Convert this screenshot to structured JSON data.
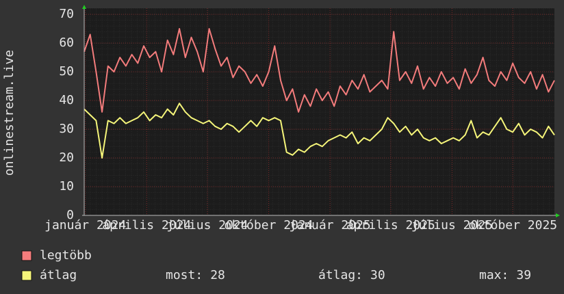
{
  "chart_data": {
    "type": "line",
    "ylabel": "onlinestream.live",
    "x": [
      0,
      1,
      2,
      3,
      4,
      5,
      6,
      7,
      8,
      9,
      10,
      11,
      12,
      13,
      14,
      15,
      16,
      17,
      18,
      19,
      20,
      21,
      22,
      23,
      24,
      25,
      26,
      27,
      28,
      29,
      30,
      31,
      32,
      33,
      34,
      35,
      36,
      37,
      38,
      39,
      40,
      41,
      42,
      43,
      44,
      45,
      46,
      47,
      48,
      49,
      50,
      51,
      52,
      53,
      54,
      55,
      56,
      57,
      58,
      59,
      60,
      61,
      62,
      63,
      64,
      65,
      66,
      67,
      68,
      69,
      70,
      71,
      72,
      73,
      74,
      75,
      76,
      77,
      78,
      79
    ],
    "xlim": [
      0,
      79
    ],
    "xticks": [
      {
        "value": 0.2,
        "label": "január 2024"
      },
      {
        "value": 10.5,
        "label": "április 2024"
      },
      {
        "value": 20.7,
        "label": "július 2024"
      },
      {
        "value": 31.0,
        "label": "október 2024"
      },
      {
        "value": 41.3,
        "label": "január 2025"
      },
      {
        "value": 51.5,
        "label": "április 2025"
      },
      {
        "value": 61.8,
        "label": "július 2025"
      },
      {
        "value": 72.0,
        "label": "október 2025"
      }
    ],
    "ylim": [
      0,
      70
    ],
    "yticks": [
      0,
      10,
      20,
      30,
      40,
      50,
      60,
      70
    ],
    "grid": true,
    "series": [
      {
        "name": "legtöbb",
        "color": "#f47c7c",
        "values": [
          57,
          63,
          50,
          36,
          52,
          50,
          55,
          52,
          56,
          53,
          59,
          55,
          57,
          50,
          61,
          56,
          65,
          55,
          62,
          57,
          50,
          65,
          58,
          52,
          55,
          48,
          52,
          50,
          46,
          49,
          45,
          50,
          59,
          47,
          40,
          44,
          36,
          42,
          38,
          44,
          40,
          43,
          38,
          45,
          42,
          47,
          44,
          49,
          43,
          45,
          47,
          44,
          64,
          47,
          50,
          46,
          52,
          44,
          48,
          45,
          50,
          46,
          48,
          44,
          51,
          46,
          49,
          55,
          47,
          45,
          50,
          47,
          53,
          48,
          46,
          50,
          44,
          49,
          43,
          47
        ]
      },
      {
        "name": "átlag",
        "color": "#f6f67a",
        "values": [
          37,
          35,
          33,
          20,
          33,
          32,
          34,
          32,
          33,
          34,
          36,
          33,
          35,
          34,
          37,
          35,
          39,
          36,
          34,
          33,
          32,
          33,
          31,
          30,
          32,
          31,
          29,
          31,
          33,
          31,
          34,
          33,
          34,
          33,
          22,
          21,
          23,
          22,
          24,
          25,
          24,
          26,
          27,
          28,
          27,
          29,
          25,
          27,
          26,
          28,
          30,
          34,
          32,
          29,
          31,
          28,
          30,
          27,
          26,
          27,
          25,
          26,
          27,
          26,
          28,
          33,
          27,
          29,
          28,
          31,
          34,
          30,
          29,
          32,
          28,
          30,
          29,
          27,
          31,
          28
        ]
      }
    ],
    "stats": [
      {
        "label": "most:",
        "value": 28
      },
      {
        "label": "átlag:",
        "value": 30
      },
      {
        "label": "max:",
        "value": 39
      }
    ]
  }
}
